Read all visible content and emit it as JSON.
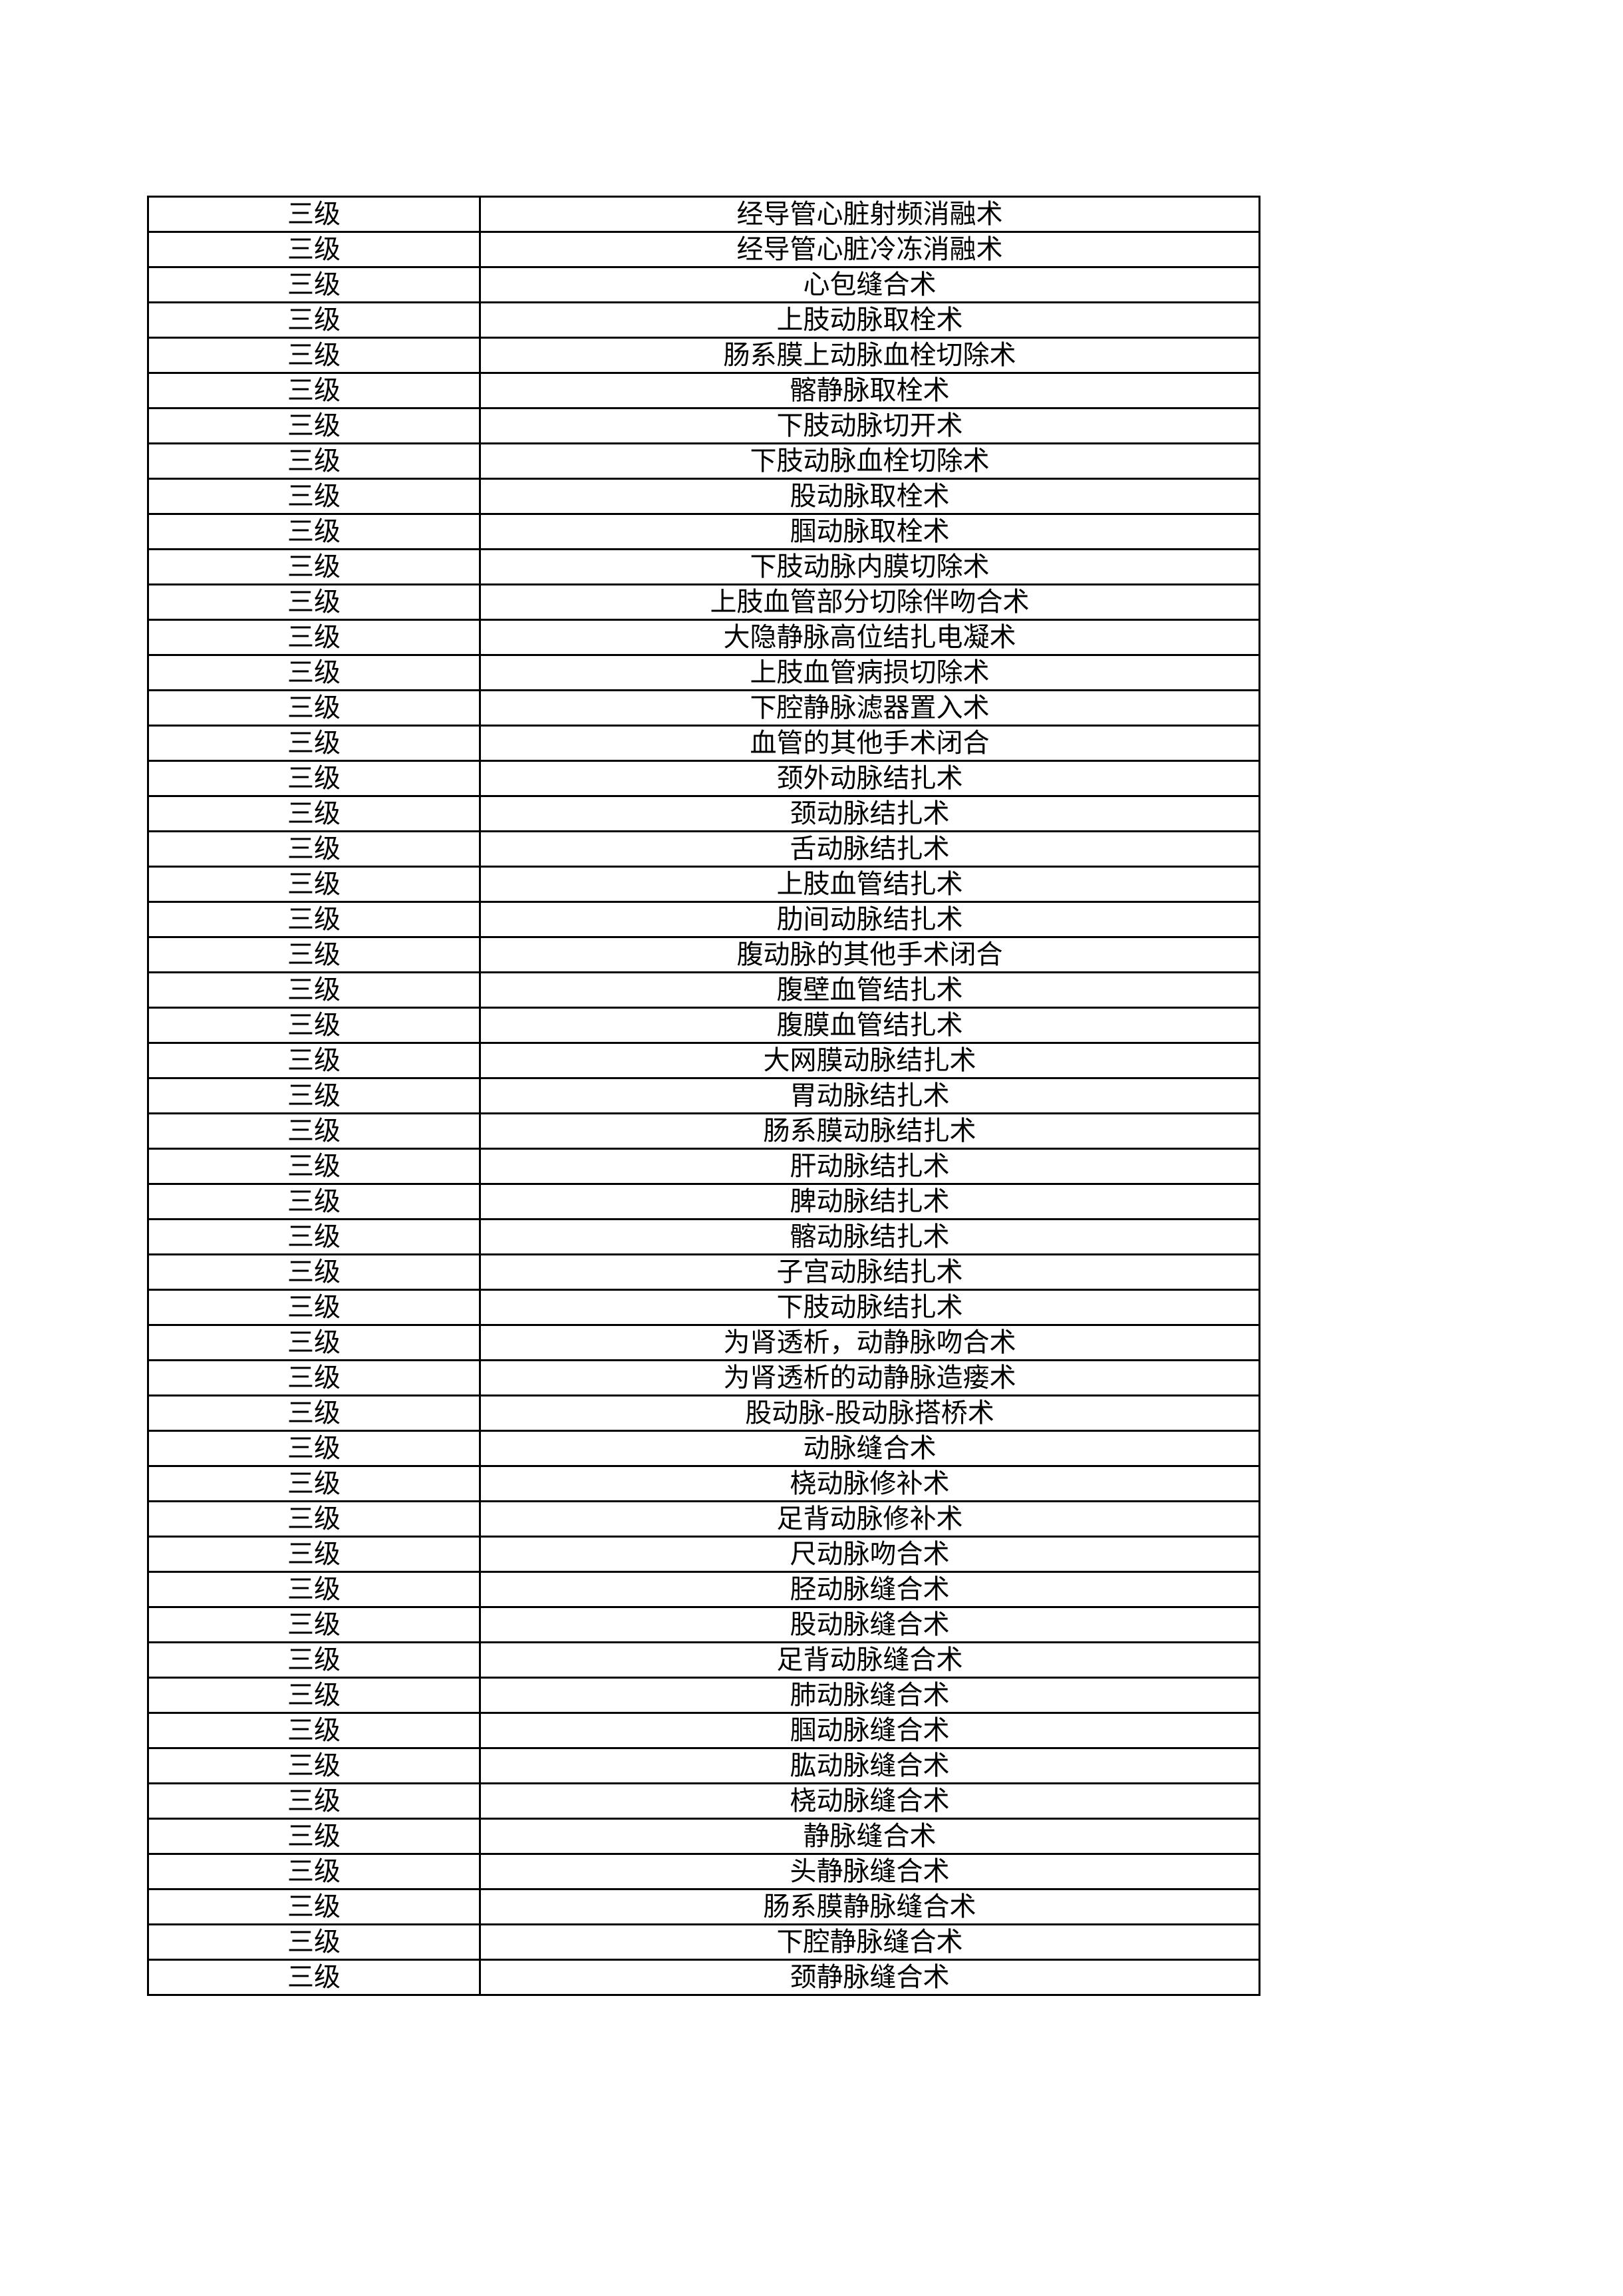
{
  "table": {
    "rows": [
      {
        "level": "三级",
        "name": "经导管心脏射频消融术"
      },
      {
        "level": "三级",
        "name": "经导管心脏冷冻消融术"
      },
      {
        "level": "三级",
        "name": "心包缝合术"
      },
      {
        "level": "三级",
        "name": "上肢动脉取栓术"
      },
      {
        "level": "三级",
        "name": "肠系膜上动脉血栓切除术"
      },
      {
        "level": "三级",
        "name": "髂静脉取栓术"
      },
      {
        "level": "三级",
        "name": "下肢动脉切开术"
      },
      {
        "level": "三级",
        "name": "下肢动脉血栓切除术"
      },
      {
        "level": "三级",
        "name": "股动脉取栓术"
      },
      {
        "level": "三级",
        "name": "腘动脉取栓术"
      },
      {
        "level": "三级",
        "name": "下肢动脉内膜切除术"
      },
      {
        "level": "三级",
        "name": "上肢血管部分切除伴吻合术"
      },
      {
        "level": "三级",
        "name": "大隐静脉高位结扎电凝术"
      },
      {
        "level": "三级",
        "name": "上肢血管病损切除术"
      },
      {
        "level": "三级",
        "name": "下腔静脉滤器置入术"
      },
      {
        "level": "三级",
        "name": "血管的其他手术闭合"
      },
      {
        "level": "三级",
        "name": "颈外动脉结扎术"
      },
      {
        "level": "三级",
        "name": "颈动脉结扎术"
      },
      {
        "level": "三级",
        "name": "舌动脉结扎术"
      },
      {
        "level": "三级",
        "name": "上肢血管结扎术"
      },
      {
        "level": "三级",
        "name": "肋间动脉结扎术"
      },
      {
        "level": "三级",
        "name": "腹动脉的其他手术闭合"
      },
      {
        "level": "三级",
        "name": "腹壁血管结扎术"
      },
      {
        "level": "三级",
        "name": "腹膜血管结扎术"
      },
      {
        "level": "三级",
        "name": "大网膜动脉结扎术"
      },
      {
        "level": "三级",
        "name": "胃动脉结扎术"
      },
      {
        "level": "三级",
        "name": "肠系膜动脉结扎术"
      },
      {
        "level": "三级",
        "name": "肝动脉结扎术"
      },
      {
        "level": "三级",
        "name": "脾动脉结扎术"
      },
      {
        "level": "三级",
        "name": "髂动脉结扎术"
      },
      {
        "level": "三级",
        "name": "子宫动脉结扎术"
      },
      {
        "level": "三级",
        "name": "下肢动脉结扎术"
      },
      {
        "level": "三级",
        "name": "为肾透析，动静脉吻合术"
      },
      {
        "level": "三级",
        "name": "为肾透析的动静脉造瘘术"
      },
      {
        "level": "三级",
        "name": "股动脉-股动脉搭桥术"
      },
      {
        "level": "三级",
        "name": "动脉缝合术"
      },
      {
        "level": "三级",
        "name": "桡动脉修补术"
      },
      {
        "level": "三级",
        "name": "足背动脉修补术"
      },
      {
        "level": "三级",
        "name": "尺动脉吻合术"
      },
      {
        "level": "三级",
        "name": "胫动脉缝合术"
      },
      {
        "level": "三级",
        "name": "股动脉缝合术"
      },
      {
        "level": "三级",
        "name": "足背动脉缝合术"
      },
      {
        "level": "三级",
        "name": "肺动脉缝合术"
      },
      {
        "level": "三级",
        "name": "腘动脉缝合术"
      },
      {
        "level": "三级",
        "name": "肱动脉缝合术"
      },
      {
        "level": "三级",
        "name": "桡动脉缝合术"
      },
      {
        "level": "三级",
        "name": "静脉缝合术"
      },
      {
        "level": "三级",
        "name": "头静脉缝合术"
      },
      {
        "level": "三级",
        "name": "肠系膜静脉缝合术"
      },
      {
        "level": "三级",
        "name": "下腔静脉缝合术"
      },
      {
        "level": "三级",
        "name": "颈静脉缝合术"
      }
    ]
  }
}
